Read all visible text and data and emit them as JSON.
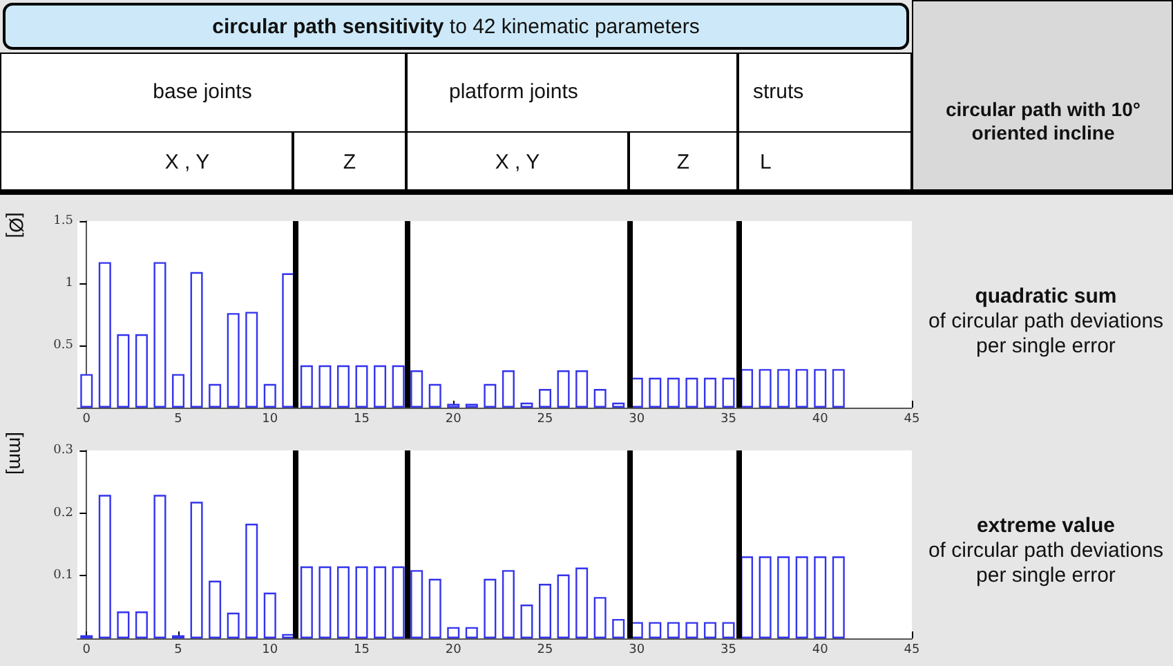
{
  "chart_data": [
    {
      "type": "bar",
      "title": "circular path sensitivity",
      "subtitle": "to 42 kinematic parameters",
      "ylabel": "[Ø]",
      "annotations": [
        "base joints",
        "platform joints",
        "struts",
        "X , Y",
        "Z",
        "X , Y",
        "Z",
        "L",
        "circular path with 10° oriented incline",
        "quadratic sum",
        "of circular path deviations per single error"
      ],
      "x": [
        0,
        1,
        2,
        3,
        4,
        5,
        6,
        7,
        8,
        9,
        10,
        11,
        12,
        13,
        14,
        15,
        16,
        17,
        18,
        19,
        20,
        21,
        22,
        23,
        24,
        25,
        26,
        27,
        28,
        29,
        30,
        31,
        32,
        33,
        34,
        35,
        36,
        37,
        38,
        39,
        40,
        41
      ],
      "values": [
        0.27,
        1.17,
        0.59,
        0.59,
        1.17,
        0.27,
        1.09,
        0.19,
        0.76,
        0.77,
        0.19,
        1.08,
        0.34,
        0.34,
        0.34,
        0.34,
        0.34,
        0.34,
        0.3,
        0.19,
        0.03,
        0.03,
        0.19,
        0.3,
        0.04,
        0.15,
        0.3,
        0.3,
        0.15,
        0.04,
        0.24,
        0.24,
        0.24,
        0.24,
        0.24,
        0.24,
        0.31,
        0.31,
        0.31,
        0.31,
        0.31,
        0.31
      ],
      "color": "#3333ee",
      "xlim": [
        -0.5,
        45
      ],
      "xticks": [
        0,
        5,
        10,
        15,
        20,
        25,
        30,
        35,
        40,
        45
      ],
      "ylim": [
        0,
        1.5
      ],
      "yticks": [
        0.5,
        1,
        1.5
      ],
      "ref_lines": [
        {
          "axis": "x",
          "value": 11.4,
          "color": "#000000"
        },
        {
          "axis": "x",
          "value": 17.5,
          "color": "#000000"
        },
        {
          "axis": "x",
          "value": 29.6,
          "color": "#000000"
        },
        {
          "axis": "x",
          "value": 35.6,
          "color": "#000000"
        }
      ],
      "data_labels": false
    },
    {
      "type": "bar",
      "ylabel": "[mm]",
      "annotations": [
        "extreme value",
        "of circular path deviations per single error"
      ],
      "x": [
        0,
        1,
        2,
        3,
        4,
        5,
        6,
        7,
        8,
        9,
        10,
        11,
        12,
        13,
        14,
        15,
        16,
        17,
        18,
        19,
        20,
        21,
        22,
        23,
        24,
        25,
        26,
        27,
        28,
        29,
        30,
        31,
        32,
        33,
        34,
        35,
        36,
        37,
        38,
        39,
        40,
        41
      ],
      "values": [
        0.005,
        0.229,
        0.043,
        0.043,
        0.229,
        0.005,
        0.218,
        0.092,
        0.041,
        0.183,
        0.073,
        0.007,
        0.115,
        0.115,
        0.115,
        0.115,
        0.115,
        0.115,
        0.109,
        0.095,
        0.018,
        0.018,
        0.095,
        0.109,
        0.054,
        0.087,
        0.102,
        0.113,
        0.066,
        0.031,
        0.026,
        0.026,
        0.026,
        0.026,
        0.026,
        0.026,
        0.131,
        0.131,
        0.131,
        0.131,
        0.131,
        0.131
      ],
      "color": "#3333ee",
      "xlim": [
        -0.5,
        45
      ],
      "xticks": [
        0,
        5,
        10,
        15,
        20,
        25,
        30,
        35,
        40,
        45
      ],
      "ylim": [
        0,
        0.3
      ],
      "yticks": [
        0.1,
        0.2,
        0.3
      ],
      "ref_lines": [
        {
          "axis": "x",
          "value": 11.4,
          "color": "#000000"
        },
        {
          "axis": "x",
          "value": 17.5,
          "color": "#000000"
        },
        {
          "axis": "x",
          "value": 29.6,
          "color": "#000000"
        },
        {
          "axis": "x",
          "value": 35.6,
          "color": "#000000"
        }
      ],
      "data_labels": false
    }
  ]
}
